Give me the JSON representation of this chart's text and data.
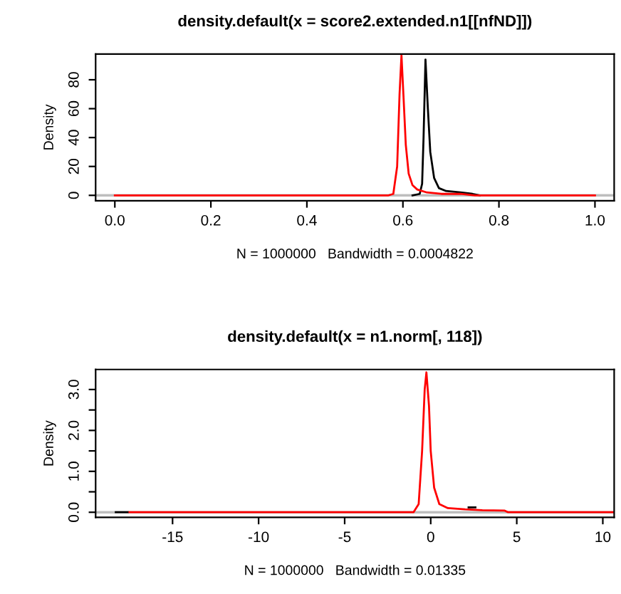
{
  "chart_data": [
    {
      "type": "line",
      "title": "density.default(x = score2.extended.n1[[nfND]])",
      "xlabel": "N = 1000000   Bandwidth = 0.0004822",
      "ylabel": "Density",
      "xlim": [
        -0.04,
        1.04
      ],
      "ylim": [
        -3.76,
        97.8
      ],
      "xticks": [
        {
          "value": 0,
          "label": "0.0"
        },
        {
          "value": 0.2,
          "label": "0.2"
        },
        {
          "value": 0.4,
          "label": "0.4"
        },
        {
          "value": 0.6,
          "label": "0.6"
        },
        {
          "value": 0.8,
          "label": "0.8"
        },
        {
          "value": 1,
          "label": "1.0"
        }
      ],
      "yticks": [
        0,
        20,
        40,
        60,
        80
      ],
      "grid": false,
      "legend": false,
      "ref_lines": [
        {
          "axis": "y",
          "value": 0,
          "color": "#bebebe"
        }
      ],
      "series": [
        {
          "color": "#000000",
          "x": [
            0.62,
            0.635,
            0.64,
            0.643,
            0.647,
            0.652,
            0.657,
            0.665,
            0.675,
            0.69,
            0.72,
            0.745,
            0.76
          ],
          "values": [
            0,
            1,
            8,
            40,
            94,
            60,
            30,
            12,
            5,
            3,
            2,
            1,
            0
          ]
        },
        {
          "color": "#ff0000",
          "x": [
            0,
            0.57,
            0.58,
            0.588,
            0.593,
            0.597,
            0.601,
            0.606,
            0.612,
            0.62,
            0.63,
            0.65,
            0.68,
            0.72,
            0.75,
            0.8,
            1.0
          ],
          "values": [
            0,
            0,
            1,
            20,
            70,
            97,
            70,
            35,
            15,
            7,
            4,
            2,
            1,
            1,
            0,
            0,
            0
          ]
        }
      ]
    },
    {
      "type": "line",
      "title": "density.default(x = n1.norm[, 118])",
      "xlabel": "N = 1000000   Bandwidth = 0.01335",
      "ylabel": "Density",
      "xlim": [
        -19.47,
        10.66
      ],
      "ylim": [
        -0.125,
        3.49
      ],
      "xticks": [
        -15,
        -10,
        -5,
        0,
        5,
        10
      ],
      "yticks": [
        {
          "value": 0,
          "label": "0.0"
        },
        {
          "value": 0.5,
          "label": null
        },
        {
          "value": 1,
          "label": "1.0"
        },
        {
          "value": 1.5,
          "label": null
        },
        {
          "value": 2,
          "label": "2.0"
        },
        {
          "value": 2.5,
          "label": null
        },
        {
          "value": 3,
          "label": "3.0"
        }
      ],
      "grid": false,
      "legend": false,
      "ref_lines": [
        {
          "axis": "y",
          "value": 0,
          "color": "#bebebe"
        }
      ],
      "series": [
        {
          "color": "#000000",
          "x": [
            -18.3,
            -17.6,
            1.8,
            2.2,
            2.6
          ],
          "values": [
            0,
            0,
            null,
            0.12,
            0.12
          ]
        },
        {
          "color": "#ff0000",
          "x": [
            -17.5,
            -1,
            -0.7,
            -0.5,
            -0.35,
            -0.25,
            -0.1,
            0,
            0.2,
            0.5,
            1,
            2,
            3,
            4.3,
            4.5,
            10.6
          ],
          "values": [
            0,
            0,
            0.2,
            1.5,
            3.0,
            3.42,
            2.6,
            1.5,
            0.6,
            0.2,
            0.1,
            0.07,
            0.05,
            0.04,
            0,
            0
          ]
        }
      ]
    }
  ]
}
